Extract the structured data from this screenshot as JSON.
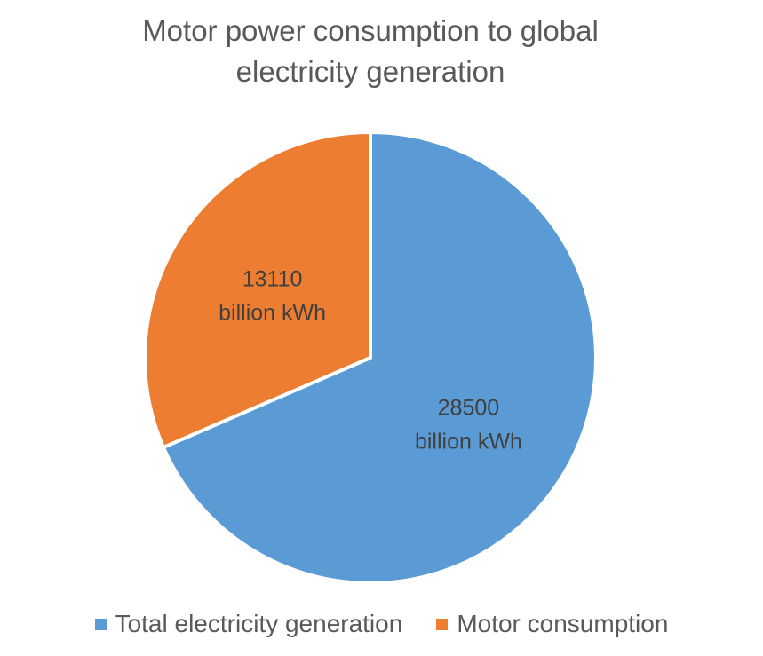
{
  "chart_data": {
    "type": "pie",
    "title_lines": [
      "Motor power consumption to global",
      "electricity generation"
    ],
    "slices": [
      {
        "name": "Total electricity generation",
        "value": 28500,
        "label_value": "28500",
        "label_unit": "billion kWh",
        "color": "#5B9BD5"
      },
      {
        "name": "Motor consumption",
        "value": 13110,
        "label_value": "13110",
        "label_unit": "billion kWh",
        "color": "#ED7D31"
      }
    ],
    "legend_position": "bottom",
    "start_angle_deg": 0,
    "direction": "clockwise",
    "separator_color": "#ffffff"
  }
}
